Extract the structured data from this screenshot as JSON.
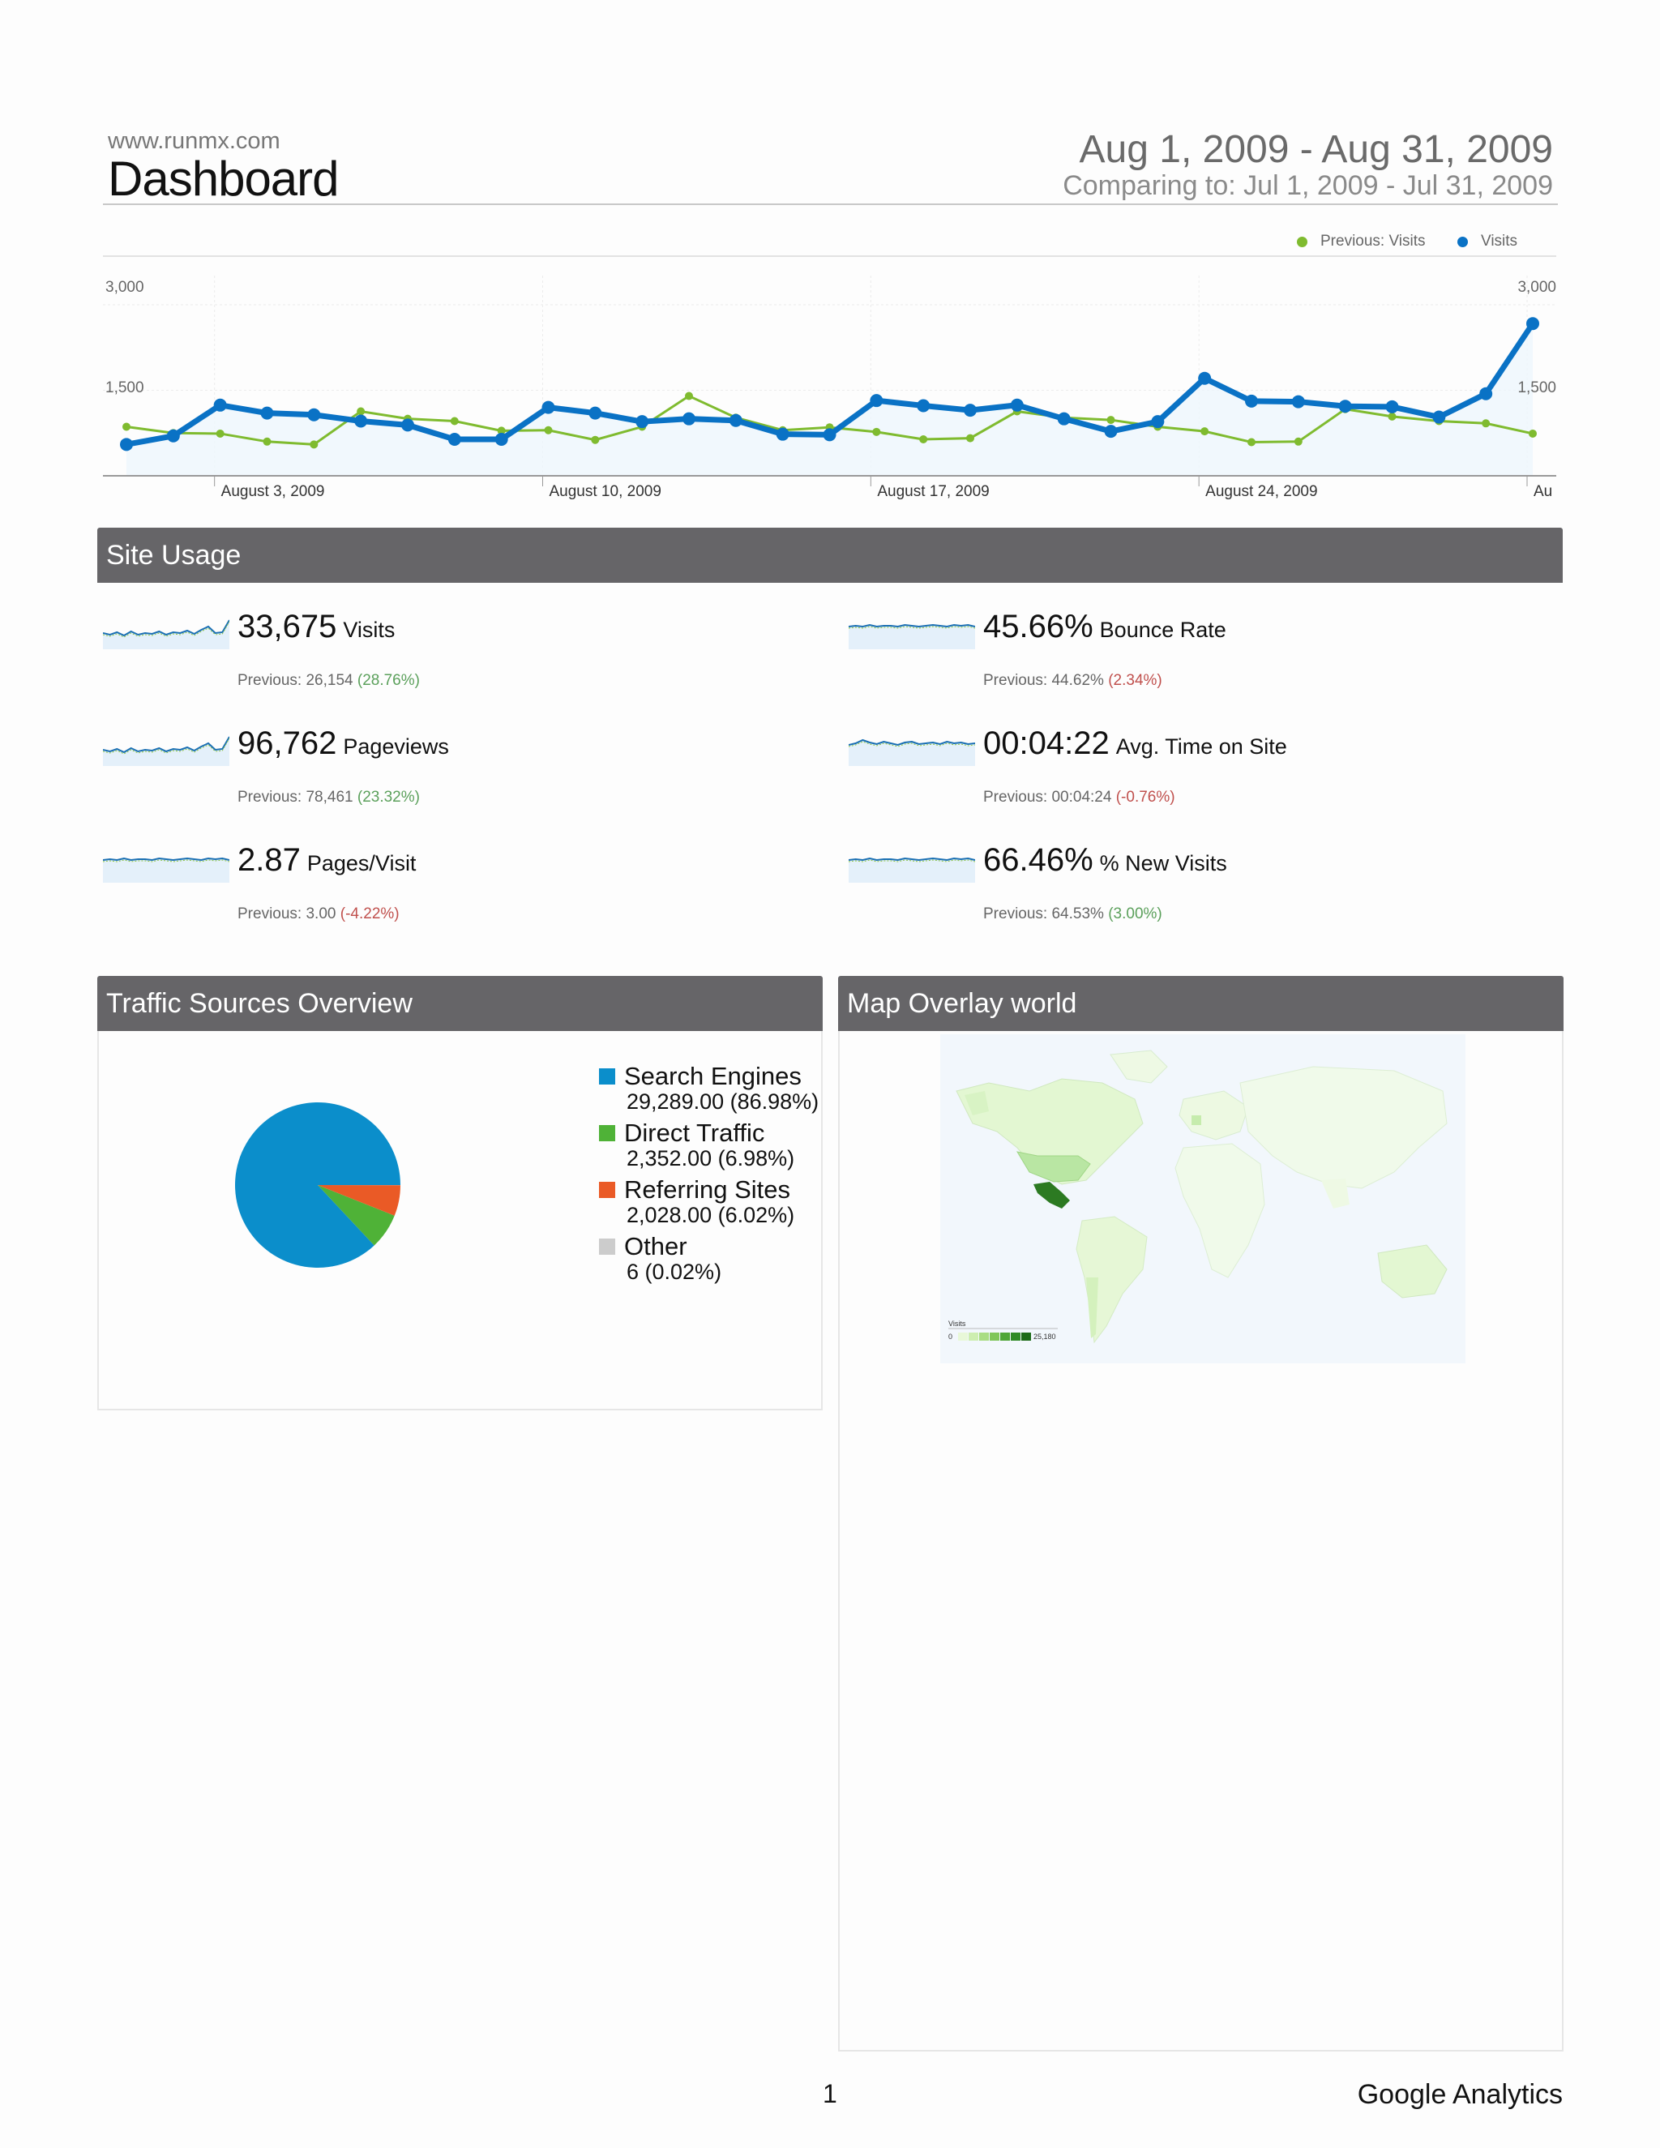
{
  "header": {
    "site": "www.runmx.com",
    "title": "Dashboard",
    "date_range": "Aug 1, 2009 - Aug 31, 2009",
    "compare": "Comparing to: Jul 1, 2009 - Jul 31, 2009"
  },
  "chart_data": {
    "type": "line",
    "title": "",
    "x_tick_labels": [
      "August 3, 2009",
      "August 10, 2009",
      "August 17, 2009",
      "August 24, 2009",
      "Au"
    ],
    "y_tick_labels": [
      "3,000",
      "1,500"
    ],
    "ylim": [
      0,
      3000
    ],
    "x": [
      1,
      2,
      3,
      4,
      5,
      6,
      7,
      8,
      9,
      10,
      11,
      12,
      13,
      14,
      15,
      16,
      17,
      18,
      19,
      20,
      21,
      22,
      23,
      24,
      25,
      26,
      27,
      28,
      29,
      30,
      31
    ],
    "series": [
      {
        "name": "Visits",
        "color": "#0a72c5",
        "values": [
          550,
          700,
          1240,
          1100,
          1070,
          960,
          890,
          640,
          640,
          1200,
          1100,
          950,
          1000,
          970,
          730,
          720,
          1320,
          1230,
          1150,
          1240,
          1000,
          780,
          950,
          1710,
          1310,
          1300,
          1220,
          1210,
          1030,
          1440,
          2670
        ]
      },
      {
        "name": "Previous: Visits",
        "color": "#7fbb2f",
        "values": [
          860,
          750,
          740,
          600,
          550,
          1130,
          1000,
          960,
          790,
          800,
          630,
          860,
          1400,
          1020,
          800,
          850,
          770,
          640,
          660,
          1130,
          1020,
          980,
          860,
          780,
          590,
          600,
          1170,
          1040,
          960,
          920,
          740
        ]
      }
    ],
    "legend": [
      "Previous: Visits",
      "Visits"
    ]
  },
  "site_usage": {
    "title": "Site Usage",
    "metrics": [
      {
        "value": "33,675",
        "name": "Visits",
        "prev": "Previous: 26,154",
        "change": "(28.76%)",
        "dir": "good"
      },
      {
        "value": "45.66%",
        "name": "Bounce Rate",
        "prev": "Previous: 44.62%",
        "change": "(2.34%)",
        "dir": "bad"
      },
      {
        "value": "96,762",
        "name": "Pageviews",
        "prev": "Previous: 78,461",
        "change": "(23.32%)",
        "dir": "good"
      },
      {
        "value": "00:04:22",
        "name": "Avg. Time on Site",
        "prev": "Previous: 00:04:24",
        "change": "(-0.76%)",
        "dir": "bad"
      },
      {
        "value": "2.87",
        "name": "Pages/Visit",
        "prev": "Previous: 3.00",
        "change": "(-4.22%)",
        "dir": "bad"
      },
      {
        "value": "66.46%",
        "name": "% New Visits",
        "prev": "Previous: 64.53%",
        "change": "(3.00%)",
        "dir": "good"
      }
    ]
  },
  "traffic": {
    "title": "Traffic Sources Overview",
    "sources": [
      {
        "label": "Search Engines",
        "value": "29,289.00 (86.98%)",
        "pct": 86.98,
        "color": "#0b8ecb"
      },
      {
        "label": "Direct Traffic",
        "value": "2,352.00 (6.98%)",
        "pct": 6.98,
        "color": "#4fb237"
      },
      {
        "label": "Referring Sites",
        "value": "2,028.00 (6.02%)",
        "pct": 6.02,
        "color": "#ea5a26"
      },
      {
        "label": "Other",
        "value": "6 (0.02%)",
        "pct": 0.02,
        "color": "#cccccc"
      }
    ]
  },
  "map": {
    "title": "Map Overlay world",
    "legend_title": "Visits",
    "min": "0",
    "max": "25,180"
  },
  "footer": {
    "page": "1",
    "brand": "Google Analytics"
  }
}
